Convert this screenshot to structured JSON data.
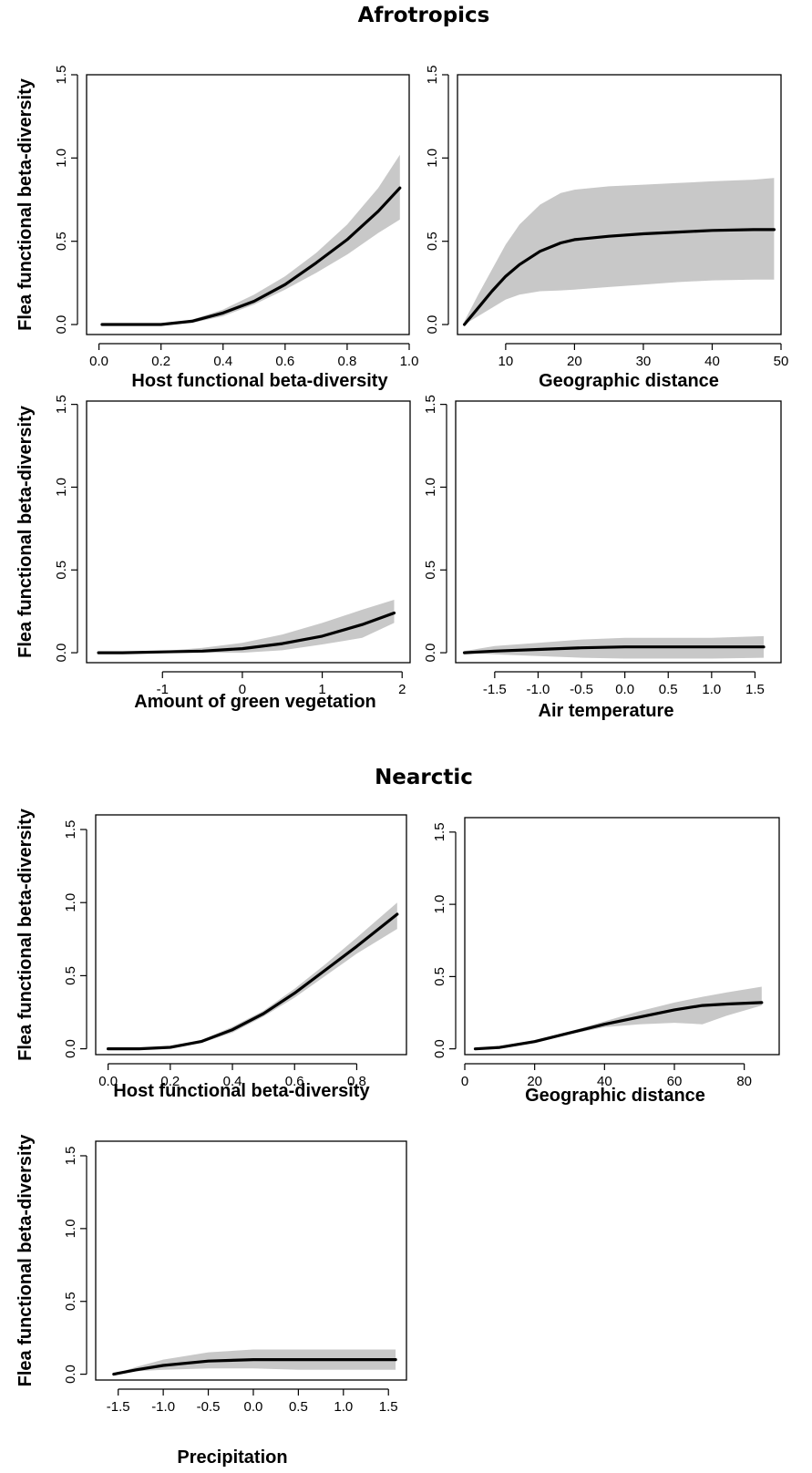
{
  "figure": {
    "section_titles": [
      "Afrotropics",
      "Nearctic"
    ]
  },
  "chart_data": [
    {
      "type": "line",
      "section": "Afrotropics",
      "xlabel": "Host functional beta-diversity",
      "ylabel": "Flea functional beta-diversity",
      "xlim": [
        -0.04,
        1.0
      ],
      "ylim": [
        -0.06,
        1.5
      ],
      "xticks": [
        0.0,
        0.2,
        0.4,
        0.6,
        0.8,
        1.0
      ],
      "xtick_labels": [
        "0.0",
        "0.2",
        "0.4",
        "0.6",
        "0.8",
        "1.0"
      ],
      "yticks": [
        0.0,
        0.5,
        1.0,
        1.5
      ],
      "ytick_labels": [
        "0.0",
        "0.5",
        "1.0",
        "1.5"
      ],
      "series": [
        {
          "values": {
            "x": [
              0.01,
              0.1,
              0.2,
              0.3,
              0.4,
              0.5,
              0.6,
              0.7,
              0.8,
              0.9,
              0.97
            ],
            "y": [
              0.0,
              0.0,
              0.0,
              0.02,
              0.07,
              0.14,
              0.24,
              0.37,
              0.51,
              0.68,
              0.82
            ],
            "lower": [
              0.0,
              0.0,
              0.0,
              0.01,
              0.05,
              0.12,
              0.21,
              0.31,
              0.42,
              0.55,
              0.63
            ],
            "upper": [
              0.0,
              0.0,
              0.0,
              0.03,
              0.09,
              0.18,
              0.29,
              0.43,
              0.6,
              0.82,
              1.02
            ]
          }
        }
      ]
    },
    {
      "type": "line",
      "section": "Afrotropics",
      "xlabel": "Geographic distance",
      "ylabel": "",
      "xlim": [
        3,
        50
      ],
      "ylim": [
        -0.06,
        1.5
      ],
      "xticks": [
        10,
        20,
        30,
        40,
        50
      ],
      "xtick_labels": [
        "10",
        "20",
        "30",
        "40",
        "50"
      ],
      "yticks": [
        0.0,
        0.5,
        1.0,
        1.5
      ],
      "ytick_labels": [
        "0.0",
        "0.5",
        "1.0",
        "1.5"
      ],
      "series": [
        {
          "values": {
            "x": [
              4,
              6,
              8,
              10,
              12,
              15,
              18,
              20,
              25,
              30,
              35,
              40,
              46,
              49
            ],
            "y": [
              0.0,
              0.1,
              0.2,
              0.29,
              0.36,
              0.44,
              0.49,
              0.51,
              0.53,
              0.545,
              0.555,
              0.565,
              0.57,
              0.57
            ],
            "lower": [
              0.0,
              0.05,
              0.1,
              0.15,
              0.18,
              0.2,
              0.205,
              0.21,
              0.225,
              0.24,
              0.255,
              0.265,
              0.27,
              0.27
            ],
            "upper": [
              0.02,
              0.18,
              0.33,
              0.48,
              0.6,
              0.72,
              0.79,
              0.81,
              0.83,
              0.84,
              0.85,
              0.86,
              0.87,
              0.88
            ]
          }
        }
      ]
    },
    {
      "type": "line",
      "section": "Afrotropics",
      "xlabel": "Amount of green vegetation",
      "ylabel": "Flea functional beta-diversity",
      "xlim": [
        -1.95,
        2.1
      ],
      "ylim": [
        -0.06,
        1.52
      ],
      "xticks": [
        -1,
        0,
        1,
        2
      ],
      "xtick_labels": [
        "-1",
        "0",
        "1",
        "2"
      ],
      "yticks": [
        0.0,
        0.5,
        1.0,
        1.5
      ],
      "ytick_labels": [
        "0.0",
        "0.5",
        "1.0",
        "1.5"
      ],
      "series": [
        {
          "values": {
            "x": [
              -1.8,
              -1.5,
              -1.0,
              -0.5,
              0.0,
              0.5,
              1.0,
              1.5,
              1.9
            ],
            "y": [
              0.0,
              0.0,
              0.005,
              0.01,
              0.025,
              0.055,
              0.1,
              0.17,
              0.24
            ],
            "lower": [
              0.0,
              0.0,
              0.0,
              0.0,
              0.0,
              0.015,
              0.05,
              0.09,
              0.18
            ],
            "upper": [
              0.0,
              0.0,
              0.01,
              0.03,
              0.06,
              0.11,
              0.18,
              0.26,
              0.32
            ]
          }
        }
      ]
    },
    {
      "type": "line",
      "section": "Afrotropics",
      "xlabel": "Air temperature",
      "ylabel": "",
      "xlim": [
        -1.95,
        1.8
      ],
      "ylim": [
        -0.06,
        1.52
      ],
      "xticks": [
        -1.5,
        -1.0,
        -0.5,
        0.0,
        0.5,
        1.0,
        1.5
      ],
      "xtick_labels": [
        "-1.5",
        "-1.0",
        "-0.5",
        "0.0",
        "0.5",
        "1.0",
        "1.5"
      ],
      "yticks": [
        0.0,
        0.5,
        1.0,
        1.5
      ],
      "ytick_labels": [
        "0.0",
        "0.5",
        "1.0",
        "1.5"
      ],
      "series": [
        {
          "values": {
            "x": [
              -1.85,
              -1.5,
              -1.0,
              -0.5,
              0.0,
              0.5,
              1.0,
              1.6
            ],
            "y": [
              0.0,
              0.01,
              0.02,
              0.03,
              0.035,
              0.035,
              0.035,
              0.035
            ],
            "lower": [
              0.0,
              -0.01,
              -0.02,
              -0.03,
              -0.035,
              -0.035,
              -0.035,
              -0.03
            ],
            "upper": [
              0.01,
              0.04,
              0.06,
              0.08,
              0.09,
              0.09,
              0.09,
              0.1
            ]
          }
        }
      ]
    },
    {
      "type": "line",
      "section": "Nearctic",
      "xlabel": "Host functional beta-diversity",
      "ylabel": "Flea functional beta-diversity",
      "xlim": [
        -0.04,
        0.96
      ],
      "ylim": [
        -0.04,
        1.6
      ],
      "xticks": [
        0.0,
        0.2,
        0.4,
        0.6,
        0.8
      ],
      "xtick_labels": [
        "0.0",
        "0.2",
        "0.4",
        "0.6",
        "0.8"
      ],
      "yticks": [
        0.0,
        0.5,
        1.0,
        1.5
      ],
      "ytick_labels": [
        "0.0",
        "0.5",
        "1.0",
        "1.5"
      ],
      "series": [
        {
          "values": {
            "x": [
              0.0,
              0.1,
              0.2,
              0.3,
              0.4,
              0.5,
              0.6,
              0.7,
              0.8,
              0.93
            ],
            "y": [
              0.0,
              0.0,
              0.01,
              0.05,
              0.13,
              0.24,
              0.38,
              0.54,
              0.7,
              0.92
            ],
            "lower": [
              0.0,
              0.0,
              0.005,
              0.04,
              0.11,
              0.22,
              0.35,
              0.5,
              0.65,
              0.82
            ],
            "upper": [
              0.0,
              0.0,
              0.015,
              0.06,
              0.15,
              0.26,
              0.41,
              0.58,
              0.76,
              1.0
            ]
          }
        }
      ]
    },
    {
      "type": "line",
      "section": "Nearctic",
      "xlabel": "Geographic distance",
      "ylabel": "",
      "xlim": [
        0,
        90
      ],
      "ylim": [
        -0.04,
        1.6
      ],
      "xticks": [
        0,
        20,
        40,
        60,
        80
      ],
      "xtick_labels": [
        "0",
        "20",
        "40",
        "60",
        "80"
      ],
      "yticks": [
        0.0,
        0.5,
        1.0,
        1.5
      ],
      "ytick_labels": [
        "0.0",
        "0.5",
        "1.0",
        "1.5"
      ],
      "series": [
        {
          "values": {
            "x": [
              3,
              10,
              20,
              30,
              40,
              50,
              60,
              68,
              75,
              85
            ],
            "y": [
              0.0,
              0.01,
              0.05,
              0.11,
              0.17,
              0.22,
              0.27,
              0.3,
              0.31,
              0.32
            ],
            "lower": [
              0.0,
              0.0,
              0.04,
              0.1,
              0.15,
              0.17,
              0.18,
              0.17,
              0.23,
              0.3
            ],
            "upper": [
              0.0,
              0.02,
              0.06,
              0.12,
              0.19,
              0.26,
              0.32,
              0.36,
              0.39,
              0.43
            ]
          }
        }
      ]
    },
    {
      "type": "line",
      "section": "Nearctic",
      "xlabel": "Precipitation",
      "ylabel": "Flea functional beta-diversity",
      "xlim": [
        -1.75,
        1.7
      ],
      "ylim": [
        -0.04,
        1.6
      ],
      "xticks": [
        -1.5,
        -1.0,
        -0.5,
        0.0,
        0.5,
        1.0,
        1.5
      ],
      "xtick_labels": [
        "-1.5",
        "-1.0",
        "-0.5",
        "0.0",
        "0.5",
        "1.0",
        "1.5"
      ],
      "yticks": [
        0.0,
        0.5,
        1.0,
        1.5
      ],
      "ytick_labels": [
        "0.0",
        "0.5",
        "1.0",
        "1.5"
      ],
      "series": [
        {
          "values": {
            "x": [
              -1.55,
              -1.3,
              -1.0,
              -0.5,
              0.0,
              0.5,
              1.0,
              1.58
            ],
            "y": [
              0.0,
              0.03,
              0.06,
              0.09,
              0.1,
              0.1,
              0.1,
              0.1
            ],
            "lower": [
              0.0,
              0.02,
              0.03,
              0.04,
              0.04,
              0.03,
              0.03,
              0.03
            ],
            "upper": [
              0.0,
              0.05,
              0.1,
              0.15,
              0.17,
              0.17,
              0.17,
              0.17
            ]
          }
        }
      ]
    }
  ]
}
